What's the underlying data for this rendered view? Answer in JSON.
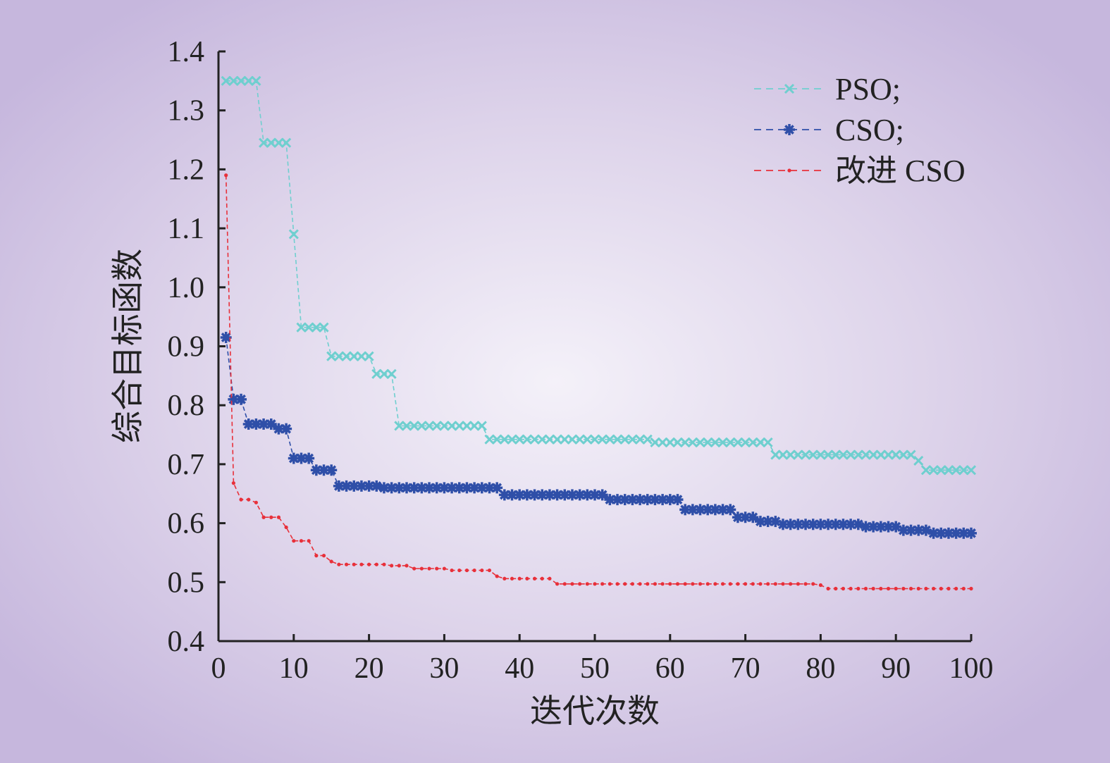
{
  "chart_data": {
    "type": "line",
    "xlabel": "迭代次数",
    "ylabel": "综合目标函数",
    "xlim": [
      0,
      100
    ],
    "ylim": [
      0.4,
      1.4
    ],
    "xticks": [
      "0",
      "10",
      "20",
      "30",
      "40",
      "50",
      "60",
      "70",
      "80",
      "90",
      "100"
    ],
    "yticks": [
      "0.4",
      "0.5",
      "0.6",
      "0.7",
      "0.8",
      "0.9",
      "1.0",
      "1.1",
      "1.2",
      "1.3",
      "1.4"
    ],
    "legend_position": "top-right",
    "grid": false,
    "series": [
      {
        "name": "PSO;",
        "color": "#6fcfcf",
        "marker": "x",
        "line_style": "dashed",
        "steps": [
          [
            1,
            1.35
          ],
          [
            6,
            1.245
          ],
          [
            10,
            1.09
          ],
          [
            11,
            0.932
          ],
          [
            15,
            0.883
          ],
          [
            21,
            0.853
          ],
          [
            24,
            0.765
          ],
          [
            36,
            0.742
          ],
          [
            58,
            0.737
          ],
          [
            74,
            0.716
          ],
          [
            93,
            0.706
          ],
          [
            94,
            0.69
          ],
          [
            100,
            0.69
          ]
        ]
      },
      {
        "name": "CSO;",
        "color": "#2f4fa8",
        "marker": "asterisk",
        "line_style": "dashed",
        "steps": [
          [
            1,
            0.915
          ],
          [
            2,
            0.81
          ],
          [
            4,
            0.768
          ],
          [
            8,
            0.76
          ],
          [
            10,
            0.71
          ],
          [
            13,
            0.69
          ],
          [
            16,
            0.663
          ],
          [
            22,
            0.66
          ],
          [
            38,
            0.648
          ],
          [
            52,
            0.64
          ],
          [
            62,
            0.623
          ],
          [
            69,
            0.61
          ],
          [
            72,
            0.603
          ],
          [
            75,
            0.598
          ],
          [
            86,
            0.594
          ],
          [
            91,
            0.588
          ],
          [
            95,
            0.583
          ],
          [
            100,
            0.583
          ]
        ]
      },
      {
        "name": "改进 CSO",
        "color": "#e8303a",
        "marker": "dot",
        "line_style": "dashed",
        "steps": [
          [
            1,
            1.19
          ],
          [
            2,
            0.668
          ],
          [
            3,
            0.64
          ],
          [
            5,
            0.635
          ],
          [
            6,
            0.61
          ],
          [
            9,
            0.593
          ],
          [
            10,
            0.57
          ],
          [
            13,
            0.545
          ],
          [
            15,
            0.535
          ],
          [
            16,
            0.53
          ],
          [
            23,
            0.528
          ],
          [
            26,
            0.523
          ],
          [
            31,
            0.52
          ],
          [
            37,
            0.51
          ],
          [
            38,
            0.506
          ],
          [
            45,
            0.497
          ],
          [
            80,
            0.495
          ],
          [
            81,
            0.489
          ],
          [
            100,
            0.489
          ]
        ]
      }
    ]
  }
}
